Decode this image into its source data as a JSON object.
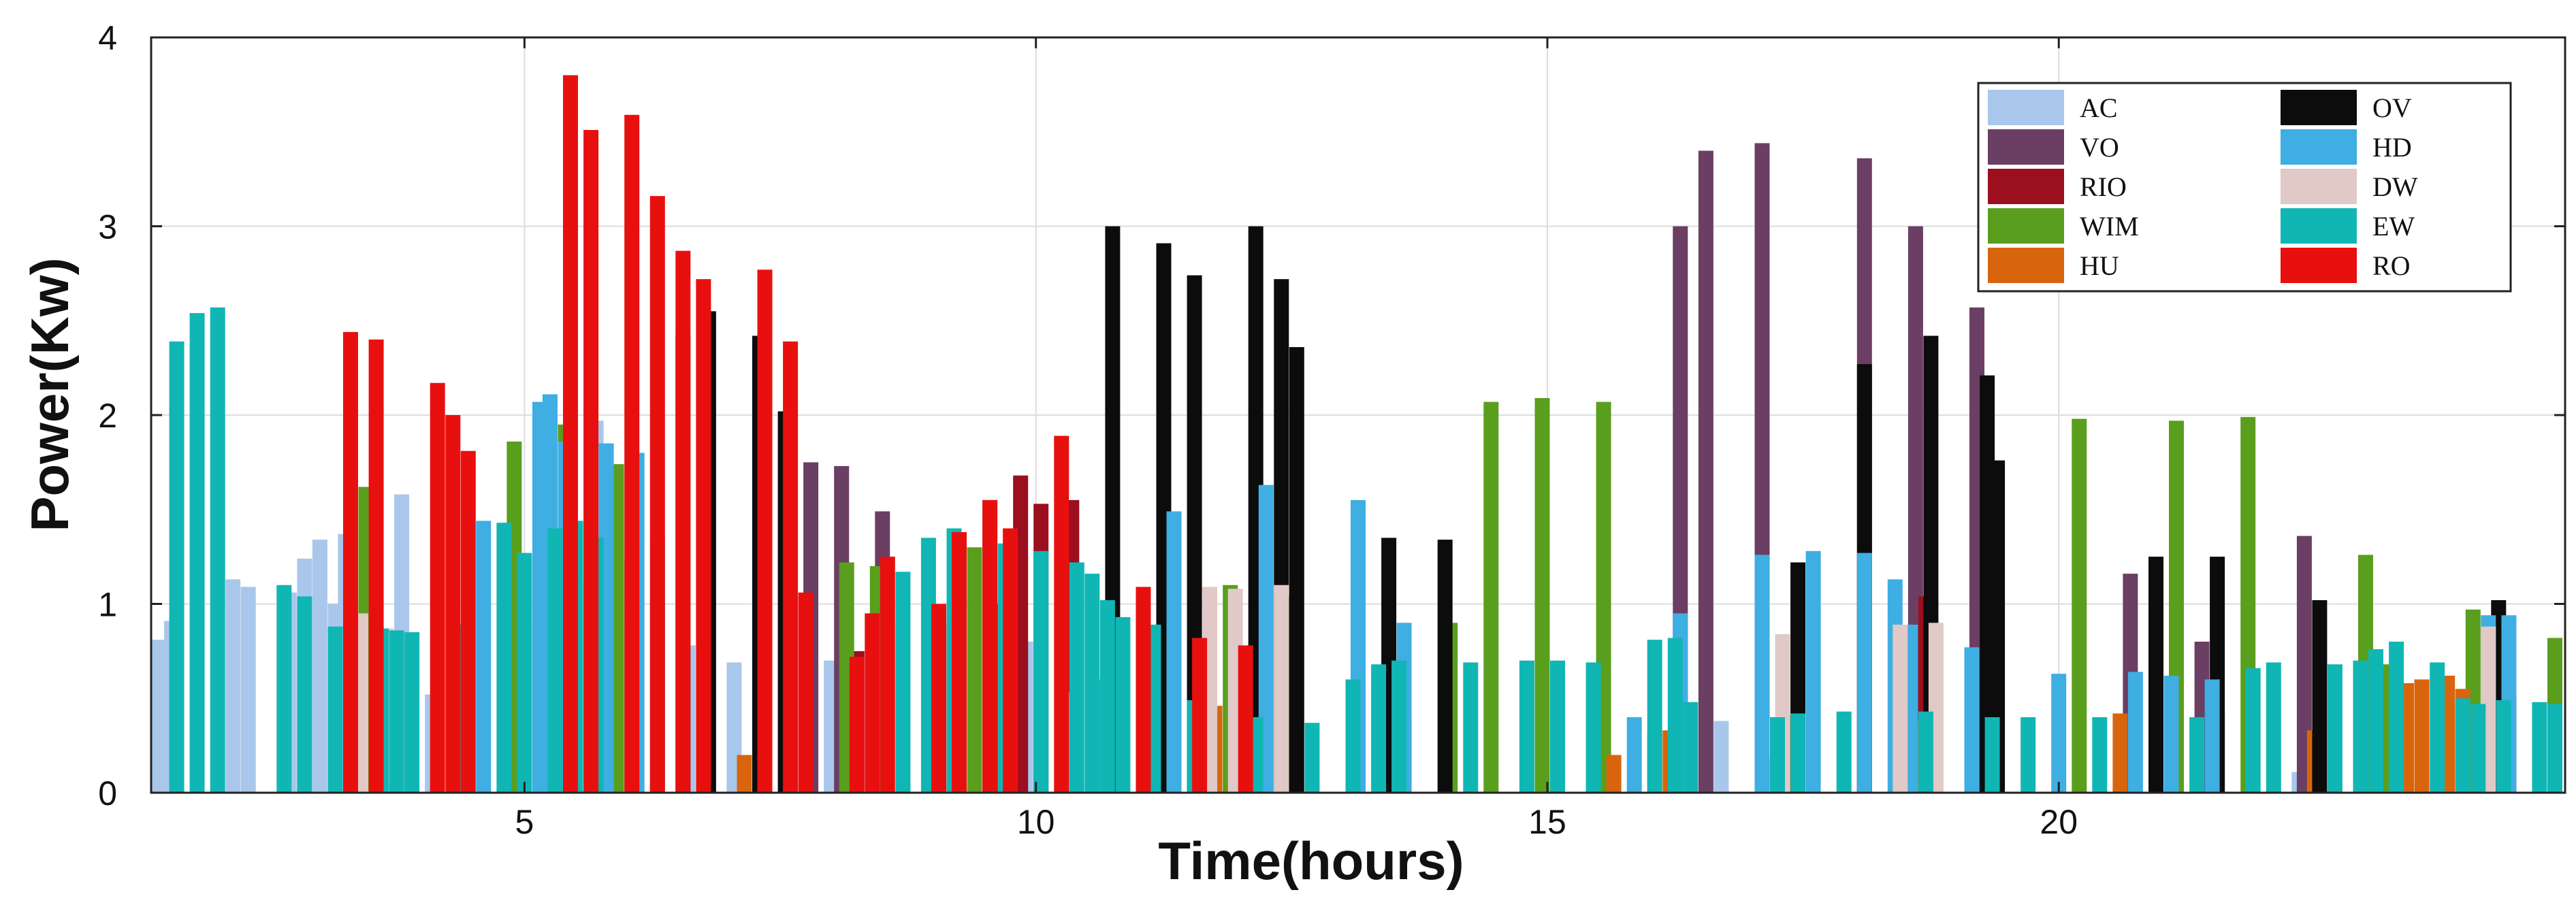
{
  "chart_data": {
    "type": "bar",
    "title": "",
    "xlabel": "Time(hours)",
    "ylabel": "Power(Kw)",
    "xlim": [
      1.35,
      24.95
    ],
    "ylim": [
      0,
      4
    ],
    "x_ticks": [
      5,
      10,
      15,
      20
    ],
    "y_ticks": [
      0,
      1,
      2,
      3,
      4
    ],
    "grid": true,
    "legend_position": "top-right",
    "series": [
      {
        "name": "AC",
        "color": "#a9c7ea",
        "points": [
          [
            1.42,
            0.81
          ],
          [
            1.55,
            0.91
          ],
          [
            2.15,
            1.13
          ],
          [
            2.3,
            1.09
          ],
          [
            2.7,
            1.06
          ],
          [
            2.85,
            1.24
          ],
          [
            3.0,
            1.34
          ],
          [
            3.15,
            1.0
          ],
          [
            3.25,
            1.37
          ],
          [
            3.4,
            0.88
          ],
          [
            3.8,
            1.58
          ],
          [
            4.1,
            0.52
          ],
          [
            5.0,
            0.9
          ],
          [
            5.5,
            1.12
          ],
          [
            5.7,
            1.97
          ],
          [
            6.05,
            0.9
          ],
          [
            6.6,
            0.78
          ],
          [
            7.05,
            0.69
          ],
          [
            7.6,
            0.78
          ],
          [
            8.0,
            0.7
          ],
          [
            8.7,
            0.9
          ],
          [
            9.2,
            1.1
          ],
          [
            9.9,
            0.8
          ],
          [
            11.2,
            0.8
          ],
          [
            11.55,
            0.6
          ],
          [
            12.0,
            0.45
          ],
          [
            12.4,
            0.42
          ],
          [
            13.6,
            0.4
          ],
          [
            16.7,
            0.38
          ],
          [
            17.2,
            0.18
          ],
          [
            18.1,
            0.45
          ],
          [
            22.35,
            0.11
          ]
        ]
      },
      {
        "name": "VO",
        "color": "#6b3e63",
        "points": [
          [
            7.8,
            1.75
          ],
          [
            8.1,
            1.73
          ],
          [
            8.5,
            1.49
          ],
          [
            16.3,
            3.0
          ],
          [
            16.55,
            3.4
          ],
          [
            17.1,
            3.44
          ],
          [
            18.1,
            3.36
          ],
          [
            18.6,
            3.0
          ],
          [
            19.2,
            2.57
          ],
          [
            20.7,
            1.16
          ],
          [
            21.4,
            0.8
          ],
          [
            22.4,
            1.36
          ]
        ]
      },
      {
        "name": "RIO",
        "color": "#9b0f1e",
        "points": [
          [
            8.25,
            0.75
          ],
          [
            9.6,
            1.0
          ],
          [
            9.85,
            1.68
          ],
          [
            10.05,
            1.53
          ],
          [
            10.35,
            1.55
          ],
          [
            18.7,
            1.04
          ]
        ]
      },
      {
        "name": "WIM",
        "color": "#5a9e1e",
        "points": [
          [
            3.45,
            1.62
          ],
          [
            4.9,
            1.86
          ],
          [
            5.4,
            1.95
          ],
          [
            5.9,
            1.74
          ],
          [
            8.15,
            1.22
          ],
          [
            8.45,
            1.2
          ],
          [
            9.4,
            1.3
          ],
          [
            9.55,
            1.55
          ],
          [
            11.25,
            0.95
          ],
          [
            11.9,
            1.1
          ],
          [
            12.45,
            1.04
          ],
          [
            14.05,
            0.9
          ],
          [
            14.45,
            2.07
          ],
          [
            14.95,
            2.09
          ],
          [
            15.55,
            2.07
          ],
          [
            20.2,
            1.98
          ],
          [
            21.15,
            1.97
          ],
          [
            21.85,
            1.99
          ],
          [
            23.0,
            1.26
          ],
          [
            23.2,
            0.68
          ],
          [
            24.05,
            0.97
          ],
          [
            24.2,
            0.88
          ],
          [
            24.85,
            0.82
          ]
        ]
      },
      {
        "name": "HU",
        "color": "#d8650d",
        "points": [
          [
            7.15,
            0.2
          ],
          [
            11.75,
            0.46
          ],
          [
            15.65,
            0.2
          ],
          [
            16.05,
            0.32
          ],
          [
            16.2,
            0.33
          ],
          [
            16.35,
            0.4
          ],
          [
            17.1,
            0.42
          ],
          [
            17.4,
            0.41
          ],
          [
            18.65,
            0.38
          ],
          [
            19.35,
            0.38
          ],
          [
            20.6,
            0.42
          ],
          [
            21.55,
            0.43
          ],
          [
            22.5,
            0.33
          ],
          [
            23.4,
            0.58
          ],
          [
            23.55,
            0.6
          ],
          [
            23.8,
            0.62
          ],
          [
            23.95,
            0.55
          ],
          [
            24.25,
            0.52
          ],
          [
            24.4,
            0.51
          ]
        ]
      },
      {
        "name": "OV",
        "color": "#0c0c0c",
        "points": [
          [
            6.55,
            2.42
          ],
          [
            6.8,
            2.55
          ],
          [
            7.3,
            2.42
          ],
          [
            7.55,
            2.02
          ],
          [
            10.75,
            3.0
          ],
          [
            11.25,
            2.91
          ],
          [
            11.55,
            2.74
          ],
          [
            12.15,
            3.0
          ],
          [
            12.4,
            2.72
          ],
          [
            12.55,
            2.36
          ],
          [
            13.45,
            1.35
          ],
          [
            14.0,
            1.34
          ],
          [
            17.45,
            1.22
          ],
          [
            18.1,
            2.27
          ],
          [
            18.75,
            2.42
          ],
          [
            19.3,
            2.21
          ],
          [
            19.4,
            1.76
          ],
          [
            20.95,
            1.25
          ],
          [
            21.55,
            1.25
          ],
          [
            22.55,
            1.02
          ],
          [
            24.3,
            1.02
          ]
        ]
      },
      {
        "name": "HD",
        "color": "#3eaee3",
        "points": [
          [
            4.6,
            1.44
          ],
          [
            5.15,
            2.07
          ],
          [
            5.25,
            2.11
          ],
          [
            5.4,
            1.86
          ],
          [
            5.8,
            1.85
          ],
          [
            6.1,
            1.8
          ],
          [
            10.65,
            0.6
          ],
          [
            11.35,
            1.49
          ],
          [
            12.25,
            1.63
          ],
          [
            13.15,
            1.55
          ],
          [
            13.6,
            0.9
          ],
          [
            15.85,
            0.4
          ],
          [
            16.3,
            0.95
          ],
          [
            17.1,
            1.26
          ],
          [
            17.6,
            1.28
          ],
          [
            18.1,
            1.27
          ],
          [
            18.4,
            1.13
          ],
          [
            18.55,
            0.89
          ],
          [
            19.15,
            0.77
          ],
          [
            20.0,
            0.63
          ],
          [
            20.75,
            0.64
          ],
          [
            21.1,
            0.62
          ],
          [
            21.5,
            0.6
          ],
          [
            24.2,
            0.94
          ],
          [
            24.4,
            0.94
          ]
        ]
      },
      {
        "name": "DW",
        "color": "#e0c9c6",
        "points": [
          [
            3.4,
            0.95
          ],
          [
            3.65,
            0.87
          ],
          [
            6.3,
            1.0
          ],
          [
            9.15,
            0.9
          ],
          [
            10.35,
            0.53
          ],
          [
            11.7,
            1.09
          ],
          [
            11.95,
            1.08
          ],
          [
            12.4,
            1.1
          ],
          [
            17.3,
            0.84
          ],
          [
            18.45,
            0.89
          ],
          [
            18.8,
            0.9
          ],
          [
            24.2,
            0.88
          ]
        ]
      },
      {
        "name": "EW",
        "color": "#10b6b4",
        "points": [
          [
            1.6,
            2.39
          ],
          [
            1.8,
            2.54
          ],
          [
            2.0,
            2.57
          ],
          [
            2.65,
            1.1
          ],
          [
            2.85,
            1.04
          ],
          [
            3.15,
            0.88
          ],
          [
            3.3,
            0.88
          ],
          [
            3.6,
            0.87
          ],
          [
            3.75,
            0.86
          ],
          [
            3.9,
            0.85
          ],
          [
            4.4,
            0.89
          ],
          [
            4.8,
            1.43
          ],
          [
            5.0,
            1.27
          ],
          [
            5.3,
            1.4
          ],
          [
            5.5,
            1.44
          ],
          [
            5.7,
            1.35
          ],
          [
            6.05,
            1.24
          ],
          [
            6.3,
            1.35
          ],
          [
            8.7,
            1.17
          ],
          [
            8.95,
            1.35
          ],
          [
            9.2,
            1.4
          ],
          [
            9.7,
            1.32
          ],
          [
            10.05,
            1.28
          ],
          [
            10.4,
            1.22
          ],
          [
            10.55,
            1.16
          ],
          [
            10.7,
            1.02
          ],
          [
            10.85,
            0.93
          ],
          [
            11.15,
            0.89
          ],
          [
            11.55,
            0.49
          ],
          [
            12.15,
            0.4
          ],
          [
            12.7,
            0.37
          ],
          [
            13.1,
            0.6
          ],
          [
            13.35,
            0.68
          ],
          [
            13.55,
            0.7
          ],
          [
            14.25,
            0.69
          ],
          [
            14.8,
            0.7
          ],
          [
            15.1,
            0.7
          ],
          [
            15.45,
            0.69
          ],
          [
            16.05,
            0.81
          ],
          [
            16.25,
            0.82
          ],
          [
            16.4,
            0.48
          ],
          [
            17.25,
            0.4
          ],
          [
            17.45,
            0.42
          ],
          [
            17.9,
            0.43
          ],
          [
            18.7,
            0.43
          ],
          [
            19.35,
            0.4
          ],
          [
            19.7,
            0.4
          ],
          [
            20.4,
            0.4
          ],
          [
            21.35,
            0.4
          ],
          [
            21.9,
            0.66
          ],
          [
            22.1,
            0.69
          ],
          [
            22.7,
            0.68
          ],
          [
            22.95,
            0.7
          ],
          [
            23.1,
            0.76
          ],
          [
            23.3,
            0.8
          ],
          [
            23.7,
            0.69
          ],
          [
            23.95,
            0.5
          ],
          [
            24.1,
            0.47
          ],
          [
            24.35,
            0.49
          ],
          [
            24.7,
            0.48
          ],
          [
            24.85,
            0.47
          ]
        ]
      },
      {
        "name": "RO",
        "color": "#e8100f",
        "points": [
          [
            3.3,
            2.44
          ],
          [
            3.55,
            2.4
          ],
          [
            4.15,
            2.17
          ],
          [
            4.3,
            2.0
          ],
          [
            4.45,
            1.81
          ],
          [
            5.45,
            3.8
          ],
          [
            5.65,
            3.51
          ],
          [
            6.05,
            3.59
          ],
          [
            6.3,
            3.16
          ],
          [
            6.55,
            2.87
          ],
          [
            6.75,
            2.72
          ],
          [
            7.35,
            2.77
          ],
          [
            7.6,
            2.39
          ],
          [
            7.75,
            1.06
          ],
          [
            8.25,
            0.72
          ],
          [
            8.4,
            0.95
          ],
          [
            8.55,
            1.25
          ],
          [
            9.05,
            1.0
          ],
          [
            9.25,
            1.38
          ],
          [
            9.55,
            1.55
          ],
          [
            9.75,
            1.4
          ],
          [
            10.25,
            1.89
          ],
          [
            11.05,
            1.09
          ],
          [
            11.6,
            0.82
          ],
          [
            12.05,
            0.78
          ]
        ]
      }
    ]
  }
}
